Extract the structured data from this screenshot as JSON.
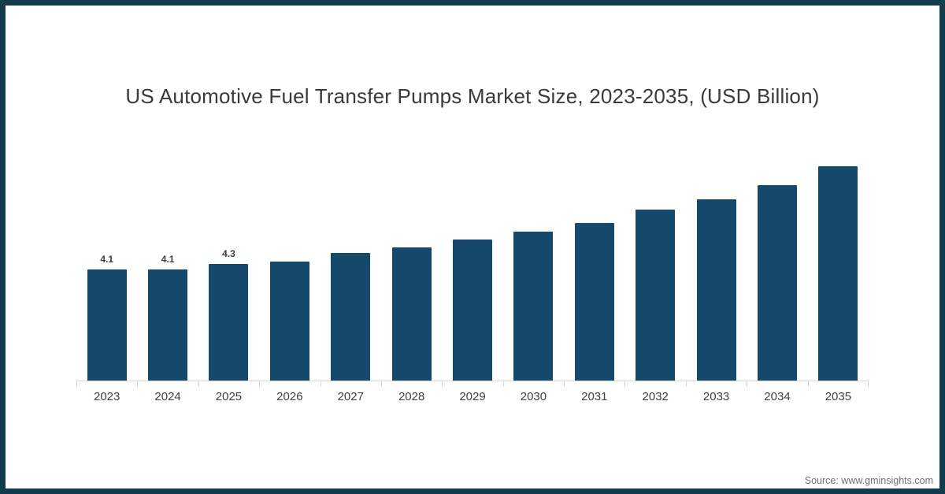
{
  "page": {
    "border_color": "#113C4D",
    "background_color": "#FFFFFF"
  },
  "title": "US Automotive Fuel Transfer Pumps Market Size, 2023-2035, (USD Billion)",
  "source": "Source: www.gminsights.com",
  "chart_data": {
    "type": "bar",
    "title": "US Automotive Fuel Transfer Pumps Market Size, 2023-2035, (USD Billion)",
    "categories": [
      "2023",
      "2024",
      "2025",
      "2026",
      "2027",
      "2028",
      "2029",
      "2030",
      "2031",
      "2032",
      "2033",
      "2034",
      "2035"
    ],
    "values": [
      4.1,
      4.1,
      4.3,
      4.4,
      4.7,
      4.9,
      5.2,
      5.5,
      5.8,
      6.3,
      6.7,
      7.2,
      7.9
    ],
    "data_labels": [
      "4.1",
      "4.1",
      "4.3",
      null,
      null,
      null,
      null,
      null,
      null,
      null,
      null,
      null,
      null
    ],
    "units": "USD Billion",
    "xlabel": "",
    "ylabel": "",
    "ylim": [
      0,
      8.5
    ],
    "grid": false,
    "legend": false,
    "bar_color": "#15496C",
    "axis_color": "#D9D9D9",
    "tick_label_color": "#404040",
    "data_label_color": "#3C3C3C"
  }
}
